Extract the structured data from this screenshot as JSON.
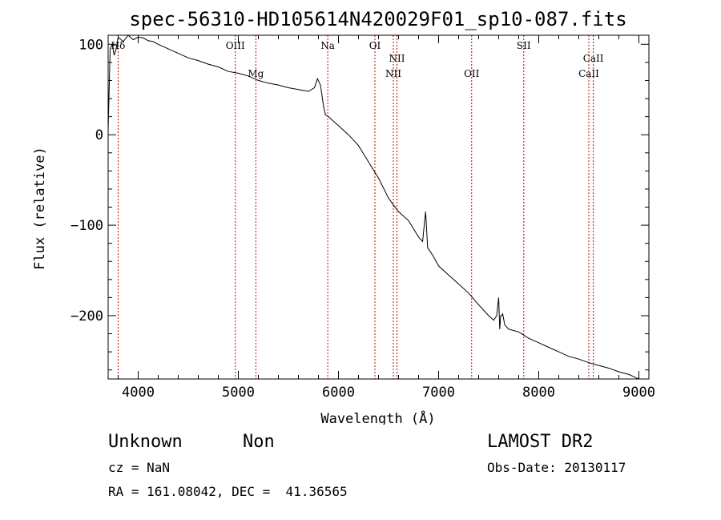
{
  "chart_data": {
    "type": "line",
    "title": "spec-56310-HD105614N420029F01_sp10-087.fits",
    "xlabel": "Wavelength (Å)",
    "ylabel": "Flux (relative)",
    "xlim": [
      3700,
      9100
    ],
    "ylim": [
      -270,
      110
    ],
    "xticks": [
      4000,
      5000,
      6000,
      7000,
      8000,
      9000
    ],
    "yticks": [
      100,
      0,
      -100,
      -200
    ],
    "line_color": "#000000",
    "marker_color": "#cc0000",
    "series": [
      {
        "x": [
          3700,
          3720,
          3740,
          3760,
          3780,
          3800,
          3850,
          3900,
          3950,
          4000,
          4050,
          4100,
          4150,
          4200,
          4300,
          4400,
          4500,
          4600,
          4700,
          4800,
          4900,
          5000,
          5100,
          5200,
          5300,
          5400,
          5500,
          5600,
          5700,
          5760,
          5790,
          5820,
          5850,
          5870,
          5900,
          5950,
          6000,
          6100,
          6200,
          6300,
          6400,
          6500,
          6550,
          6600,
          6700,
          6800,
          6840,
          6870,
          6890,
          6910,
          6950,
          7000,
          7100,
          7200,
          7300,
          7400,
          7500,
          7550,
          7580,
          7600,
          7610,
          7620,
          7630,
          7640,
          7660,
          7700,
          7800,
          7900,
          8000,
          8100,
          8200,
          8300,
          8400,
          8500,
          8600,
          8700,
          8800,
          8900,
          8960,
          8990,
          9000
        ],
        "y": [
          5,
          95,
          100,
          88,
          95,
          108,
          103,
          110,
          105,
          108,
          107,
          104,
          103,
          100,
          95,
          90,
          85,
          82,
          78,
          75,
          70,
          68,
          65,
          60,
          57,
          55,
          52,
          50,
          48,
          52,
          62,
          55,
          32,
          22,
          20,
          15,
          10,
          0,
          -12,
          -30,
          -48,
          -70,
          -78,
          -85,
          -95,
          -113,
          -118,
          -85,
          -125,
          -128,
          -135,
          -145,
          -155,
          -165,
          -175,
          -188,
          -200,
          -205,
          -200,
          -180,
          -215,
          -200,
          -200,
          -198,
          -210,
          -215,
          -218,
          -225,
          -230,
          -235,
          -240,
          -245,
          -248,
          -252,
          -255,
          -258,
          -262,
          -265,
          -268,
          -270,
          -268
        ]
      }
    ],
    "line_markers": [
      {
        "label": "Hδ",
        "x": 3800,
        "label_row": "top"
      },
      {
        "label": "OIII",
        "x": 4970,
        "label_row": "top"
      },
      {
        "label": "Mg",
        "x": 5175,
        "label_row": "bottom"
      },
      {
        "label": "Na",
        "x": 5893,
        "label_row": "top"
      },
      {
        "label": "OI",
        "x": 6364,
        "label_row": "top"
      },
      {
        "label": "NII",
        "x": 6548,
        "label_row": "bottom"
      },
      {
        "label": "NII",
        "x": 6584,
        "label_row": "middle"
      },
      {
        "label": "OII",
        "x": 7330,
        "label_row": "bottom"
      },
      {
        "label": "SII",
        "x": 7850,
        "label_row": "top"
      },
      {
        "label": "CaII",
        "x": 8500,
        "label_row": "bottom"
      },
      {
        "label": "CaII",
        "x": 8545,
        "label_row": "middle"
      }
    ]
  },
  "info": {
    "object_class": "Unknown",
    "object_subclass": "Non",
    "survey": "LAMOST DR2",
    "redshift": "cz = NaN",
    "obs_date": "Obs-Date: 20130117",
    "coords": "RA = 161.08042, DEC =  41.36565"
  }
}
